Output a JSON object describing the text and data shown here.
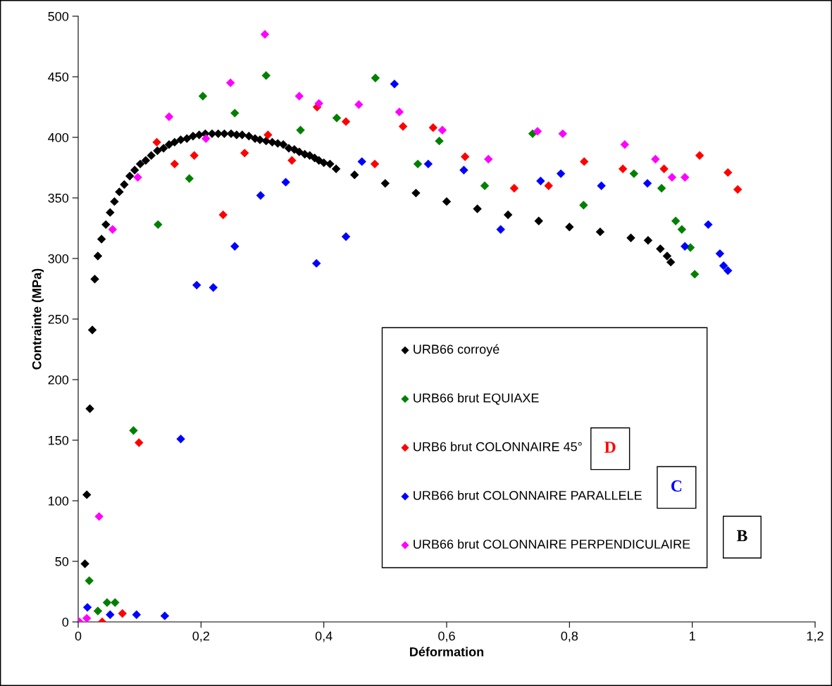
{
  "chart_data": {
    "type": "scatter",
    "xlabel": "Déformation",
    "ylabel": "Contrainte (MPa)",
    "xlim": [
      0,
      1.2
    ],
    "xticks": [
      0,
      {
        "value": 0.2,
        "label": "0,2"
      },
      {
        "value": 0.4,
        "label": "0,4"
      },
      {
        "value": 0.6,
        "label": "0,6"
      },
      {
        "value": 0.8,
        "label": "0,8"
      },
      1,
      {
        "value": 1.2,
        "label": "1,2"
      }
    ],
    "ylim": [
      0,
      500
    ],
    "yticks": [
      0,
      50,
      100,
      150,
      200,
      250,
      300,
      350,
      400,
      450,
      500
    ],
    "grid": false,
    "legend": "bottom right",
    "marker": "diamond",
    "annotations": [
      "D",
      "C",
      "B"
    ],
    "series": [
      {
        "name": "URB66 corroyé",
        "color": "#000000",
        "x": [
          0.011,
          0.014,
          0.019,
          0.023,
          0.027,
          0.032,
          0.038,
          0.045,
          0.052,
          0.059,
          0.067,
          0.075,
          0.084,
          0.092,
          0.101,
          0.11,
          0.119,
          0.129,
          0.139,
          0.148,
          0.157,
          0.167,
          0.177,
          0.187,
          0.197,
          0.207,
          0.218,
          0.228,
          0.238,
          0.249,
          0.258,
          0.267,
          0.278,
          0.288,
          0.296,
          0.306,
          0.316,
          0.325,
          0.334,
          0.343,
          0.352,
          0.36,
          0.369,
          0.377,
          0.385,
          0.392,
          0.4,
          0.41,
          0.42,
          0.45,
          0.5,
          0.55,
          0.6,
          0.65,
          0.7,
          0.75,
          0.8,
          0.85,
          0.9,
          0.928,
          0.948,
          0.959,
          0.965
        ],
        "values": [
          48,
          105,
          176,
          241,
          283,
          302,
          316,
          328,
          338,
          347,
          355,
          361,
          368,
          373,
          378,
          381,
          385,
          389,
          391,
          394,
          396,
          398,
          399,
          401,
          402,
          403,
          403,
          403,
          403,
          403,
          402,
          402,
          401,
          399,
          398,
          397,
          396,
          395,
          394,
          391,
          390,
          388,
          386,
          385,
          383,
          381,
          379,
          378,
          374,
          369,
          362,
          354,
          347,
          341,
          336,
          331,
          326,
          322,
          317,
          315,
          308,
          302,
          297
        ]
      },
      {
        "name": "URB66 brut EQUIAXE",
        "color": "#008000",
        "x": [
          0.018,
          0.032,
          0.047,
          0.06,
          0.09,
          0.13,
          0.181,
          0.203,
          0.255,
          0.306,
          0.362,
          0.421,
          0.484,
          0.553,
          0.588,
          0.662,
          0.74,
          0.823,
          0.905,
          0.95,
          0.973,
          0.983,
          0.997,
          1.004
        ],
        "values": [
          34,
          9,
          16,
          16,
          158,
          328,
          366,
          434,
          420,
          451,
          406,
          416,
          449,
          378,
          397,
          360,
          403,
          344,
          370,
          358,
          331,
          324,
          309,
          287
        ]
      },
      {
        "name": "URB6 brut COLONNAIRE 45°",
        "color": "#ff0000",
        "x": [
          0.039,
          0.072,
          0.099,
          0.128,
          0.157,
          0.189,
          0.236,
          0.271,
          0.309,
          0.348,
          0.389,
          0.436,
          0.483,
          0.529,
          0.578,
          0.63,
          0.71,
          0.766,
          0.824,
          0.887,
          0.954,
          1.012,
          1.058,
          1.074
        ],
        "values": [
          0,
          7,
          148,
          396,
          378,
          385,
          336,
          387,
          402,
          381,
          425,
          413,
          378,
          409,
          408,
          384,
          358,
          360,
          380,
          374,
          374,
          385,
          371,
          357
        ]
      },
      {
        "name": "URB66 brut COLONNAIRE PARALLELE",
        "color": "#0000ff",
        "x": [
          0.015,
          0.052,
          0.095,
          0.141,
          0.167,
          0.193,
          0.22,
          0.255,
          0.297,
          0.338,
          0.388,
          0.436,
          0.462,
          0.515,
          0.57,
          0.628,
          0.688,
          0.753,
          0.786,
          0.852,
          0.927,
          0.988,
          1.026,
          1.045,
          1.051,
          1.058
        ],
        "values": [
          12,
          6,
          6,
          5,
          151,
          278,
          276,
          310,
          352,
          363,
          296,
          318,
          380,
          444,
          378,
          373,
          324,
          364,
          370,
          360,
          362,
          310,
          328,
          304,
          294,
          290
        ]
      },
      {
        "name": "URB66 brut COLONNAIRE PERPENDICULAIRE",
        "color": "#ff00ff",
        "x": [
          0.002,
          0.014,
          0.034,
          0.056,
          0.097,
          0.148,
          0.208,
          0.248,
          0.304,
          0.36,
          0.392,
          0.457,
          0.523,
          0.593,
          0.668,
          0.748,
          0.789,
          0.89,
          0.94,
          0.967,
          0.988
        ],
        "values": [
          0,
          3,
          87,
          324,
          367,
          417,
          399,
          445,
          485,
          434,
          428,
          427,
          421,
          406,
          382,
          405,
          403,
          394,
          382,
          367,
          367
        ]
      }
    ]
  }
}
